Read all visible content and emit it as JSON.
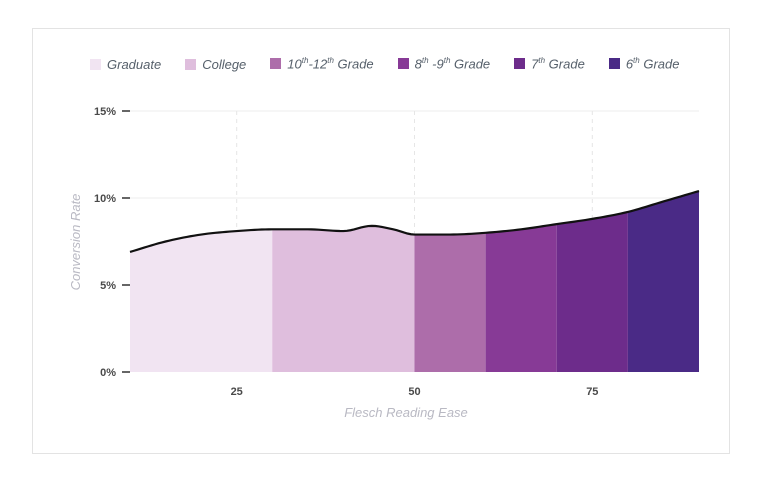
{
  "chart_data": {
    "type": "area",
    "xlabel": "Flesch Reading Ease",
    "ylabel": "Conversion Rate",
    "xlim": [
      10,
      90
    ],
    "ylim": [
      0,
      15
    ],
    "xticks": [
      25,
      50,
      75
    ],
    "xtick_labels": [
      "25",
      "50",
      "75"
    ],
    "yticks": [
      0,
      5,
      10,
      15
    ],
    "ytick_labels": [
      "0%",
      "5%",
      "10%",
      "15%"
    ],
    "x_gridlines": true,
    "y_gridlines": true,
    "legend_position": "top",
    "curve": {
      "x": [
        10,
        15,
        20,
        25,
        30,
        35,
        40,
        44,
        47,
        50,
        55,
        60,
        65,
        70,
        75,
        80,
        85,
        90
      ],
      "y": [
        6.9,
        7.5,
        7.9,
        8.1,
        8.2,
        8.2,
        8.1,
        8.4,
        8.2,
        7.9,
        7.9,
        8.0,
        8.2,
        8.5,
        8.8,
        9.2,
        9.8,
        10.4
      ]
    },
    "series": [
      {
        "name": "Graduate",
        "name_sup": "",
        "name_rest": "",
        "color": "#f1e4f2",
        "x_range": [
          10,
          30
        ]
      },
      {
        "name": "College",
        "name_sup": "",
        "name_rest": "",
        "color": "#dfbedd",
        "x_range": [
          30,
          50
        ]
      },
      {
        "name": "10",
        "name_sup": "th",
        "name_rest": "-12th Grade",
        "color": "#ad6daa",
        "x_range": [
          50,
          60
        ]
      },
      {
        "name": "8",
        "name_sup": "th",
        "name_rest": " -9th Grade",
        "color": "#873a96",
        "x_range": [
          60,
          70
        ]
      },
      {
        "name": "7",
        "name_sup": "th",
        "name_rest": " Grade",
        "color": "#6d2c8b",
        "x_range": [
          70,
          80
        ]
      },
      {
        "name": "6",
        "name_sup": "th",
        "name_rest": " Grade",
        "color": "#4a2a86",
        "x_range": [
          80,
          90
        ]
      }
    ]
  }
}
